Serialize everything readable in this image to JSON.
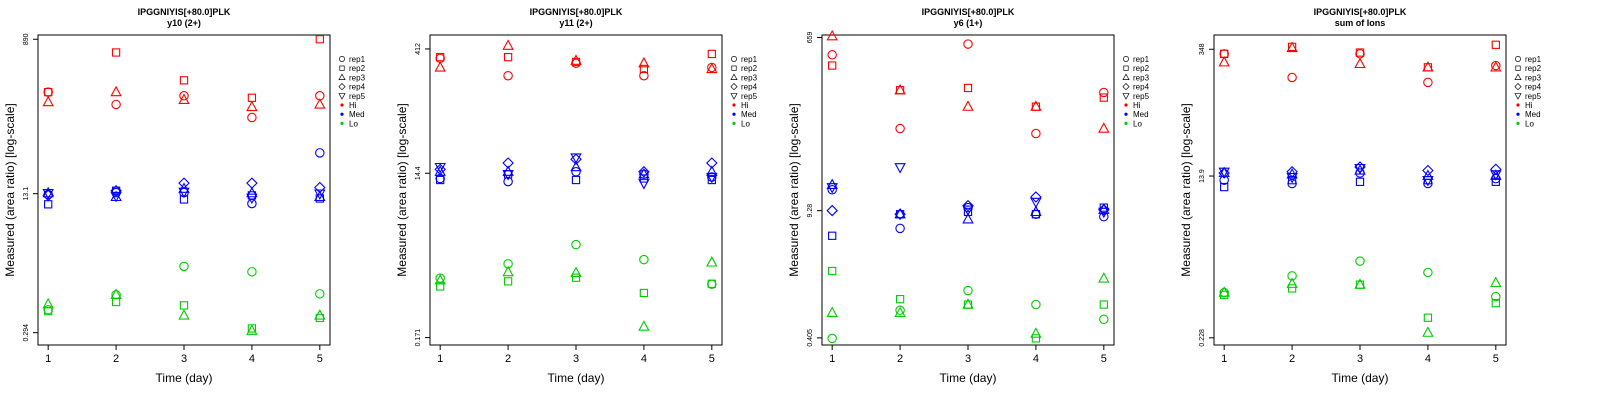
{
  "legend": {
    "shapes": [
      {
        "label": "rep1",
        "symbol": "circle"
      },
      {
        "label": "rep2",
        "symbol": "square"
      },
      {
        "label": "rep3",
        "symbol": "triangle-up"
      },
      {
        "label": "rep4",
        "symbol": "diamond"
      },
      {
        "label": "rep5",
        "symbol": "triangle-down"
      }
    ],
    "colors": [
      {
        "label": "Hi",
        "color": "#ff0000"
      },
      {
        "label": "Med",
        "color": "#0000ff"
      },
      {
        "label": "Lo",
        "color": "#00cc00"
      }
    ]
  },
  "chart_data": [
    {
      "type": "scatter",
      "title": "IPGGNIYIS[+80.0]PLK",
      "subtitle": "y10 (2+)",
      "xlabel": "Time (day)",
      "ylabel": "Measured (area ratio) [log-scale]",
      "log_scale_y": true,
      "x": [
        1,
        2,
        3,
        4,
        5
      ],
      "yticks": [
        0.294,
        13.1,
        890
      ],
      "yticklabels": [
        "0.294",
        "13.1",
        "890"
      ],
      "ylim": [
        0.21,
        1000
      ],
      "series": [
        {
          "name": "rep1",
          "group": "Hi",
          "values": [
            210,
            150,
            190,
            105,
            190
          ]
        },
        {
          "name": "rep2",
          "group": "Hi",
          "values": [
            210,
            620,
            290,
            180,
            890
          ]
        },
        {
          "name": "rep3",
          "group": "Hi",
          "values": [
            160,
            210,
            170,
            140,
            150
          ]
        },
        {
          "name": "rep1",
          "group": "Med",
          "values": [
            12.8,
            13.5,
            13.5,
            10.0,
            40.0
          ]
        },
        {
          "name": "rep2",
          "group": "Med",
          "values": [
            9.8,
            14.2,
            11.2,
            12.5,
            11.5
          ]
        },
        {
          "name": "rep3",
          "group": "Med",
          "values": [
            13.3,
            12.0,
            15.0,
            13.3,
            12.0
          ]
        },
        {
          "name": "rep4",
          "group": "Med",
          "values": [
            12.5,
            14.2,
            17.5,
            17.5,
            15.5
          ]
        },
        {
          "name": "rep5",
          "group": "Med",
          "values": [
            13.3,
            12.3,
            13.8,
            11.7,
            13.1
          ]
        },
        {
          "name": "rep1",
          "group": "Lo",
          "values": [
            0.55,
            0.83,
            1.8,
            1.55,
            0.85
          ]
        },
        {
          "name": "rep2",
          "group": "Lo",
          "values": [
            0.53,
            0.68,
            0.62,
            0.33,
            0.44
          ]
        },
        {
          "name": "rep3",
          "group": "Lo",
          "values": [
            0.64,
            0.83,
            0.47,
            0.31,
            0.47
          ]
        }
      ]
    },
    {
      "type": "scatter",
      "title": "IPGGNIYIS[+80.0]PLK",
      "subtitle": "y11 (2+)",
      "xlabel": "Time (day)",
      "ylabel": "Measured (area ratio) [log-scale]",
      "log_scale_y": true,
      "x": [
        1,
        2,
        3,
        4,
        5
      ],
      "yticks": [
        0.171,
        14.4,
        412
      ],
      "yticklabels": [
        "0.171",
        "14.4",
        "412"
      ],
      "ylim": [
        0.14,
        600
      ],
      "series": [
        {
          "name": "rep1",
          "group": "Hi",
          "values": [
            320,
            200,
            280,
            200,
            250
          ]
        },
        {
          "name": "rep2",
          "group": "Hi",
          "values": [
            330,
            330,
            290,
            240,
            360
          ]
        },
        {
          "name": "rep3",
          "group": "Hi",
          "values": [
            250,
            450,
            300,
            280,
            240
          ]
        },
        {
          "name": "rep1",
          "group": "Med",
          "values": [
            12.5,
            11.5,
            15.0,
            14.0,
            13.0
          ]
        },
        {
          "name": "rep2",
          "group": "Med",
          "values": [
            12.0,
            14.0,
            12.0,
            12.5,
            12.0
          ]
        },
        {
          "name": "rep3",
          "group": "Med",
          "values": [
            15.0,
            15.0,
            17.0,
            14.0,
            15.0
          ]
        },
        {
          "name": "rep4",
          "group": "Med",
          "values": [
            16.0,
            19.0,
            21.0,
            15.0,
            19.0
          ]
        },
        {
          "name": "rep5",
          "group": "Med",
          "values": [
            17.0,
            14.0,
            22.0,
            11.0,
            13.0
          ]
        },
        {
          "name": "rep1",
          "group": "Lo",
          "values": [
            0.85,
            1.25,
            2.1,
            1.4,
            0.72
          ]
        },
        {
          "name": "rep2",
          "group": "Lo",
          "values": [
            0.68,
            0.78,
            0.86,
            0.57,
            0.73
          ]
        },
        {
          "name": "rep3",
          "group": "Lo",
          "values": [
            0.8,
            1.0,
            0.98,
            0.23,
            1.3
          ]
        }
      ]
    },
    {
      "type": "scatter",
      "title": "IPGGNIYIS[+80.0]PLK",
      "subtitle": "y6 (1+)",
      "xlabel": "Time (day)",
      "ylabel": "Measured (area ratio) [log-scale]",
      "log_scale_y": true,
      "x": [
        1,
        2,
        3,
        4,
        5
      ],
      "yticks": [
        0.405,
        9.28,
        659
      ],
      "yticklabels": [
        "0.405",
        "9.28",
        "659"
      ],
      "ylim": [
        0.34,
        700
      ],
      "series": [
        {
          "name": "rep1",
          "group": "Hi",
          "values": [
            430,
            70,
            560,
            62,
            170
          ]
        },
        {
          "name": "rep2",
          "group": "Hi",
          "values": [
            330,
            180,
            190,
            120,
            150
          ]
        },
        {
          "name": "rep3",
          "group": "Hi",
          "values": [
            680,
            180,
            120,
            120,
            70
          ]
        },
        {
          "name": "rep1",
          "group": "Med",
          "values": [
            15.5,
            6.0,
            10.0,
            8.5,
            8.0
          ]
        },
        {
          "name": "rep2",
          "group": "Med",
          "values": [
            5.0,
            8.5,
            9.0,
            8.5,
            10.0
          ]
        },
        {
          "name": "rep3",
          "group": "Med",
          "values": [
            17.5,
            8.5,
            7.5,
            9.0,
            9.5
          ]
        },
        {
          "name": "rep4",
          "group": "Med",
          "values": [
            9.3,
            8.5,
            10.5,
            13.0,
            9.5
          ]
        },
        {
          "name": "rep5",
          "group": "Med",
          "values": [
            16.5,
            27.0,
            9.5,
            11.5,
            9.0
          ]
        },
        {
          "name": "rep1",
          "group": "Lo",
          "values": [
            0.4,
            0.8,
            1.3,
            0.92,
            0.64
          ]
        },
        {
          "name": "rep2",
          "group": "Lo",
          "values": [
            2.1,
            1.05,
            0.92,
            0.4,
            0.92
          ]
        },
        {
          "name": "rep3",
          "group": "Lo",
          "values": [
            0.75,
            0.75,
            0.92,
            0.45,
            1.75
          ]
        }
      ]
    },
    {
      "type": "scatter",
      "title": "IPGGNIYIS[+80.0]PLK",
      "subtitle": "sum of Ions",
      "xlabel": "Time (day)",
      "ylabel": "Measured (area ratio) [log-scale]",
      "log_scale_y": true,
      "x": [
        1,
        2,
        3,
        4,
        5
      ],
      "yticks": [
        0.228,
        13.9,
        348
      ],
      "yticklabels": [
        "0.228",
        "13.9",
        "348"
      ],
      "ylim": [
        0.19,
        500
      ],
      "series": [
        {
          "name": "rep1",
          "group": "Hi",
          "values": [
            310,
            170,
            310,
            150,
            230
          ]
        },
        {
          "name": "rep2",
          "group": "Hi",
          "values": [
            310,
            370,
            320,
            220,
            390
          ]
        },
        {
          "name": "rep3",
          "group": "Hi",
          "values": [
            250,
            360,
            240,
            220,
            220
          ]
        },
        {
          "name": "rep1",
          "group": "Med",
          "values": [
            12.5,
            11.5,
            15.0,
            11.5,
            13.0
          ]
        },
        {
          "name": "rep2",
          "group": "Med",
          "values": [
            10.5,
            12.5,
            12.0,
            12.5,
            12.0
          ]
        },
        {
          "name": "rep3",
          "group": "Med",
          "values": [
            15.0,
            14.5,
            16.0,
            14.0,
            14.0
          ]
        },
        {
          "name": "rep4",
          "group": "Med",
          "values": [
            15.0,
            15.5,
            17.5,
            16.0,
            16.5
          ]
        },
        {
          "name": "rep5",
          "group": "Med",
          "values": [
            15.5,
            13.5,
            17.0,
            12.5,
            14.5
          ]
        },
        {
          "name": "rep1",
          "group": "Lo",
          "values": [
            0.72,
            1.1,
            1.6,
            1.2,
            0.65
          ]
        },
        {
          "name": "rep2",
          "group": "Lo",
          "values": [
            0.68,
            0.8,
            0.88,
            0.38,
            0.55
          ]
        },
        {
          "name": "rep3",
          "group": "Lo",
          "values": [
            0.72,
            0.9,
            0.88,
            0.26,
            0.92
          ]
        }
      ]
    }
  ]
}
